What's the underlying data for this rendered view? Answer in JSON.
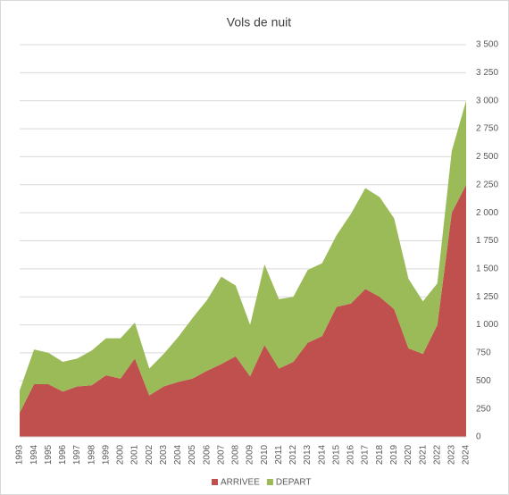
{
  "chart_data": {
    "type": "stacked_area",
    "title": "Vols de nuit",
    "categories": [
      "1993",
      "1994",
      "1995",
      "1996",
      "1997",
      "1998",
      "1999",
      "2000",
      "2001",
      "2002",
      "2003",
      "2004",
      "2005",
      "2006",
      "2007",
      "2008",
      "2009",
      "2010",
      "2011",
      "2012",
      "2013",
      "2014",
      "2015",
      "2016",
      "2017",
      "2018",
      "2019",
      "2020",
      "2021",
      "2022",
      "2023",
      "2024"
    ],
    "series": [
      {
        "name": "ARRIVEE",
        "color": "#c0504d",
        "values": [
          215,
          470,
          470,
          405,
          450,
          460,
          550,
          520,
          700,
          370,
          450,
          490,
          520,
          590,
          650,
          720,
          540,
          820,
          610,
          670,
          840,
          900,
          1160,
          1190,
          1320,
          1250,
          1140,
          790,
          740,
          1000,
          2000,
          2250
        ]
      },
      {
        "name": "DEPART",
        "color": "#9bbb59",
        "values": [
          200,
          310,
          280,
          265,
          250,
          310,
          330,
          360,
          320,
          240,
          290,
          400,
          540,
          630,
          780,
          630,
          460,
          720,
          620,
          580,
          650,
          650,
          640,
          800,
          900,
          890,
          810,
          620,
          470,
          370,
          550,
          750
        ]
      }
    ],
    "ylim": [
      0,
      3500
    ],
    "yticks": [
      0,
      250,
      500,
      750,
      {
        "value": 1000,
        "label": "1 000"
      },
      {
        "value": 1250,
        "label": "1 250"
      },
      {
        "value": 1500,
        "label": "1 500"
      },
      {
        "value": 1750,
        "label": "1 750"
      },
      {
        "value": 2000,
        "label": "2 000"
      },
      {
        "value": 2250,
        "label": "2 250"
      },
      {
        "value": 2500,
        "label": "2 500"
      },
      {
        "value": 2750,
        "label": "2 750"
      },
      {
        "value": 3000,
        "label": "3 000"
      },
      {
        "value": 3250,
        "label": "3 250"
      },
      {
        "value": 3500,
        "label": "3 500"
      }
    ],
    "grid": true,
    "y_axis_side": "right",
    "legend": "bottom"
  }
}
